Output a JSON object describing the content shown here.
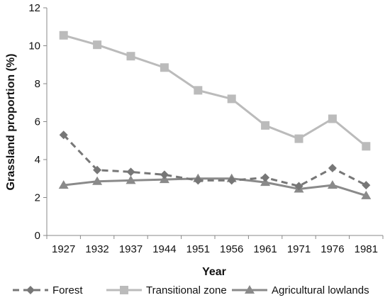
{
  "chart_data": {
    "type": "line",
    "categories": [
      "1927",
      "1932",
      "1937",
      "1944",
      "1951",
      "1956",
      "1961",
      "1971",
      "1976",
      "1981"
    ],
    "xlabel": "Year",
    "ylabel": "Grassland proportion (%)",
    "ylim": [
      0,
      12
    ],
    "yticks": [
      "0",
      "2",
      "4",
      "6",
      "8",
      "10",
      "12"
    ],
    "grid": false,
    "legend": "bottom",
    "series": [
      {
        "name": "Forest",
        "values": [
          5.3,
          3.45,
          3.35,
          3.2,
          2.9,
          2.9,
          3.05,
          2.6,
          3.55,
          2.65
        ],
        "color": "#777777",
        "line": "dashed",
        "marker": "diamond"
      },
      {
        "name": "Transitional zone",
        "values": [
          10.55,
          10.05,
          9.45,
          8.85,
          7.65,
          7.2,
          5.8,
          5.1,
          6.15,
          4.7
        ],
        "color": "#bbbbbb",
        "line": "solid",
        "marker": "square"
      },
      {
        "name": "Agricultural lowlands",
        "values": [
          2.65,
          2.85,
          2.9,
          2.95,
          3.0,
          3.0,
          2.8,
          2.45,
          2.65,
          2.1
        ],
        "color": "#8a8a8a",
        "line": "solid",
        "marker": "triangle"
      }
    ]
  }
}
